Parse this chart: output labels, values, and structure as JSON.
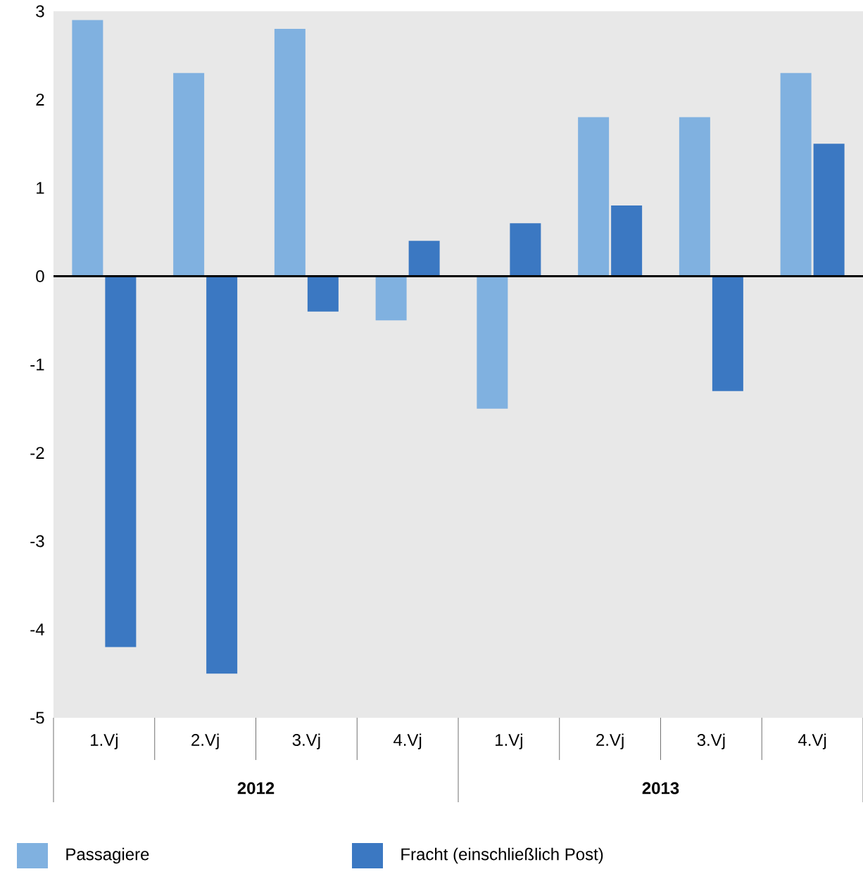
{
  "chart_data": {
    "type": "bar",
    "categories": [
      "1.Vj",
      "2.Vj",
      "3.Vj",
      "4.Vj",
      "1.Vj",
      "2.Vj",
      "3.Vj",
      "4.Vj"
    ],
    "series": [
      {
        "name": "Passagiere",
        "color": "#80b1e0",
        "values": [
          2.9,
          2.3,
          2.8,
          -0.5,
          -1.5,
          1.8,
          1.8,
          2.3
        ]
      },
      {
        "name": "Fracht (einschließlich Post)",
        "color": "#3b78c2",
        "values": [
          -4.2,
          -4.5,
          -0.4,
          0.4,
          0.6,
          0.8,
          -1.3,
          1.5
        ]
      }
    ],
    "ylim": [
      -5,
      3
    ],
    "yticks": [
      -5,
      -4,
      -3,
      -2,
      -1,
      0,
      1,
      2,
      3
    ],
    "legend": "bottom",
    "annotations": [
      "2012",
      "2013"
    ]
  }
}
